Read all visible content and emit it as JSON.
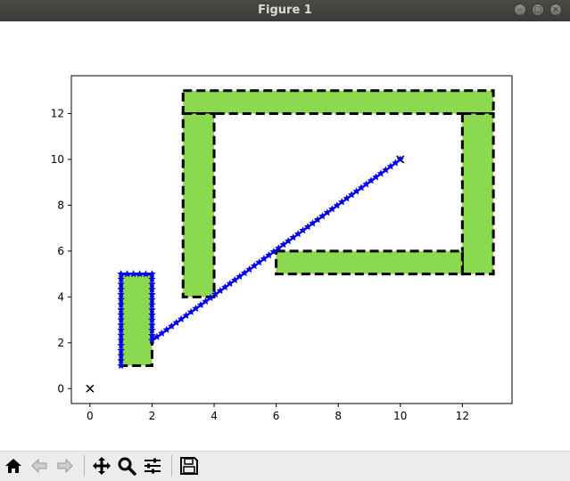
{
  "window": {
    "title": "Figure 1"
  },
  "toolbar": {
    "buttons": [
      {
        "name": "home-button",
        "icon": "home-icon"
      },
      {
        "name": "back-button",
        "icon": "arrow-left-icon"
      },
      {
        "name": "forward-button",
        "icon": "arrow-right-icon"
      },
      {
        "name": "pan-button",
        "icon": "move-icon"
      },
      {
        "name": "zoom-button",
        "icon": "magnifier-icon"
      },
      {
        "name": "configure-subplots-button",
        "icon": "sliders-icon"
      },
      {
        "name": "save-button",
        "icon": "floppy-disk-icon"
      }
    ]
  },
  "chart_data": {
    "type": "scatter",
    "title": "",
    "xlabel": "",
    "ylabel": "",
    "xlim": [
      -0.6,
      13.6
    ],
    "ylim": [
      -0.65,
      13.65
    ],
    "xticks": [
      "0",
      "2",
      "4",
      "6",
      "8",
      "10",
      "12"
    ],
    "yticks": [
      "0",
      "2",
      "4",
      "6",
      "8",
      "10",
      "12"
    ],
    "grid": false,
    "obstacles": {
      "fill_color": "#8ad94f",
      "edge_color": "#000000",
      "edge_style": "dashed",
      "rects": [
        {
          "x": 1,
          "y": 1,
          "w": 1,
          "h": 4
        },
        {
          "x": 3,
          "y": 12,
          "w": 10,
          "h": 1
        },
        {
          "x": 3,
          "y": 4,
          "w": 1,
          "h": 8
        },
        {
          "x": 12,
          "y": 5,
          "w": 1,
          "h": 7
        },
        {
          "x": 6,
          "y": 5,
          "w": 6,
          "h": 1
        }
      ]
    },
    "series": [
      {
        "marker": "x",
        "color": "#000000",
        "points": [
          [
            0,
            0
          ],
          [
            10,
            10
          ]
        ]
      },
      {
        "marker": "*",
        "color": "#0000ee",
        "path": [
          [
            1,
            1
          ],
          [
            1,
            5
          ],
          [
            2,
            5
          ],
          [
            2,
            2.1
          ],
          [
            10,
            10
          ]
        ]
      }
    ]
  }
}
